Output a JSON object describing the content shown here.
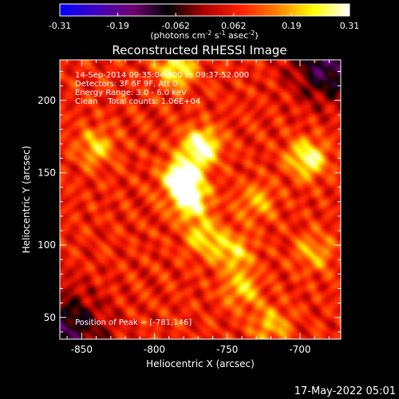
{
  "colorbar": {
    "ticks": [
      "-0.31",
      "-0.19",
      "-0.062",
      "0.062",
      "0.19",
      "0.31"
    ],
    "unit_prefix": "(photons cm",
    "unit_sup1": "-2",
    "unit_mid1": " s",
    "unit_sup2": "-1",
    "unit_mid2": " asec",
    "unit_sup3": "-2",
    "unit_suffix": ")",
    "range": [
      -0.31,
      0.31
    ],
    "colors": [
      "#0000ff",
      "#4000c0",
      "#700070",
      "#000000",
      "#b00000",
      "#ff2000",
      "#ff8000",
      "#ffff00",
      "#ffffff"
    ]
  },
  "chart_data": {
    "type": "heatmap",
    "title": "Reconstructed RHESSI Image",
    "xlabel": "Heliocentric X (arcsec)",
    "ylabel": "Heliocentric Y (arcsec)",
    "xlim": [
      -865,
      -672
    ],
    "ylim": [
      35,
      228
    ],
    "x_ticks": [
      -850,
      -800,
      -750,
      -700
    ],
    "y_ticks": [
      50,
      100,
      150,
      200
    ],
    "x_tick_labels": [
      "-850",
      "-800",
      "-750",
      "-700"
    ],
    "y_tick_labels": [
      "50",
      "100",
      "150",
      "200"
    ],
    "peak": {
      "x": -781,
      "y": 146
    },
    "sources": [
      {
        "x": -781,
        "y": 146,
        "flux": 0.31
      },
      {
        "x": -768,
        "y": 168,
        "flux": 0.26
      },
      {
        "x": -775,
        "y": 130,
        "flux": 0.22
      },
      {
        "x": -765,
        "y": 105,
        "flux": 0.16
      },
      {
        "x": -745,
        "y": 95,
        "flux": 0.15
      },
      {
        "x": -695,
        "y": 160,
        "flux": 0.22
      },
      {
        "x": -740,
        "y": 70,
        "flux": 0.14
      },
      {
        "x": -730,
        "y": 130,
        "flux": 0.12
      },
      {
        "x": -785,
        "y": 222,
        "flux": 0.2
      },
      {
        "x": -840,
        "y": 168,
        "flux": 0.14
      },
      {
        "x": -720,
        "y": 45,
        "flux": 0.13
      },
      {
        "x": -690,
        "y": 95,
        "flux": 0.12
      }
    ],
    "annotations": [
      "14-Sep-2014 09:35:04.000 to 09:37:52.000",
      "Detectors: 3F 6F 9F, Att 0",
      "Energy Range: 3.0 - 6.0 keV",
      "Clean    Total counts: 1.06E+04",
      "Position of Peak = [-781,146]"
    ]
  },
  "footer": {
    "timestamp": "17-May-2022 05:01"
  }
}
